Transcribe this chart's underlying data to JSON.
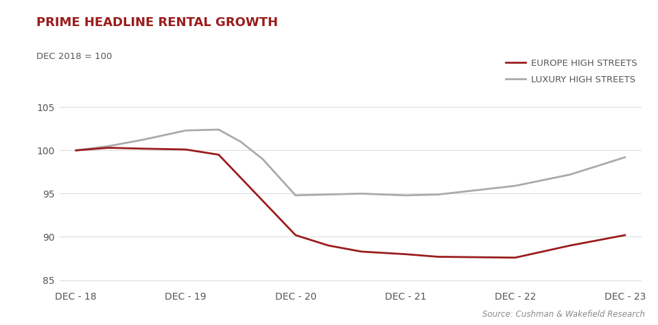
{
  "title": "PRIME HEADLINE RENTAL GROWTH",
  "subtitle": "DEC 2018 = 100",
  "source": "Source: Cushman & Wakefield Research",
  "x_labels": [
    "DEC - 18",
    "DEC - 19",
    "DEC - 20",
    "DEC - 21",
    "DEC - 22",
    "DEC - 23"
  ],
  "x_values": [
    0,
    1,
    2,
    3,
    4,
    5
  ],
  "europe_high_streets": {
    "label": "EUROPE HIGH STREETS",
    "color": "#9B1C1C",
    "x": [
      0,
      0.3,
      0.6,
      1.0,
      1.3,
      2.0,
      2.3,
      2.6,
      3.0,
      3.3,
      4.0,
      4.5,
      5.0
    ],
    "y": [
      100,
      100.3,
      100.2,
      100.1,
      99.5,
      90.2,
      89.0,
      88.3,
      88.0,
      87.7,
      87.6,
      89.0,
      90.2
    ]
  },
  "luxury_high_streets": {
    "label": "LUXURY HIGH STREETS",
    "color": "#AAAAAA",
    "x": [
      0,
      0.3,
      0.6,
      1.0,
      1.3,
      1.5,
      1.7,
      2.0,
      2.3,
      2.6,
      3.0,
      3.3,
      4.0,
      4.5,
      5.0
    ],
    "y": [
      100,
      100.5,
      101.2,
      102.3,
      102.4,
      101.0,
      99.0,
      94.8,
      94.9,
      95.0,
      94.8,
      94.9,
      95.9,
      97.2,
      99.2
    ]
  },
  "ylim": [
    84,
    107
  ],
  "yticks": [
    85,
    90,
    95,
    100,
    105
  ],
  "background_color": "#FFFFFF",
  "title_color": "#9B1C1C",
  "subtitle_color": "#555555",
  "axis_label_color": "#555555",
  "grid_color": "#DDDDDD",
  "linewidth": 2.0
}
